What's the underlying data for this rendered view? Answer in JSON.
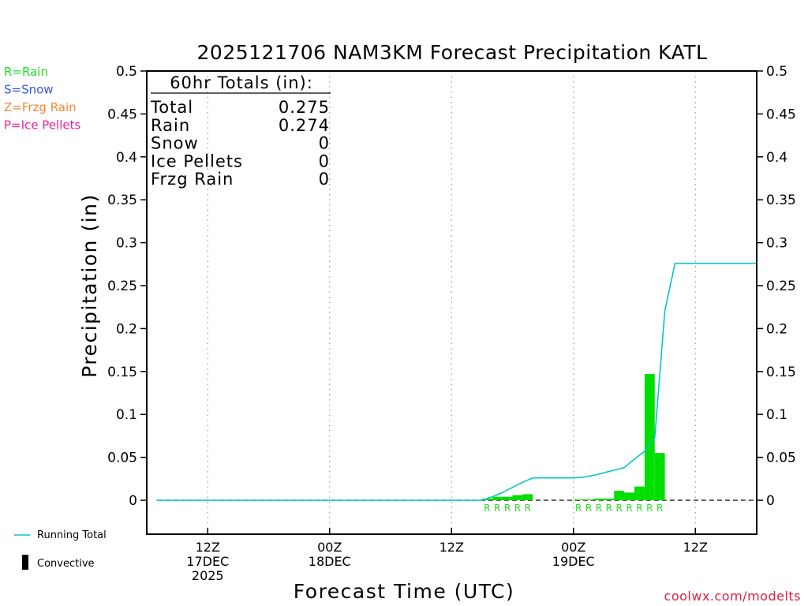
{
  "chart_data": {
    "type": "bar",
    "title": "2025121706 NAM3KM Forecast Precipitation KATL",
    "ylabel": "Precipitation (in)",
    "xlabel": "Forecast Time (UTC)",
    "ylim": [
      -0.04,
      0.5
    ],
    "yticks": [
      0,
      0.05,
      0.1,
      0.15,
      0.2,
      0.25,
      0.3,
      0.35,
      0.4,
      0.45,
      0.5
    ],
    "ytick_labels": [
      "0",
      "0.05",
      "0.1",
      "0.15",
      "0.2",
      "0.25",
      "0.3",
      "0.35",
      "0.4",
      "0.45",
      "0.5"
    ],
    "xlim": [
      0,
      60
    ],
    "xticks": [
      {
        "hour": 6,
        "lines": [
          "12Z",
          "17DEC",
          "2025"
        ]
      },
      {
        "hour": 18,
        "lines": [
          "00Z",
          "18DEC"
        ]
      },
      {
        "hour": 30,
        "lines": [
          "12Z"
        ]
      },
      {
        "hour": 42,
        "lines": [
          "00Z",
          "19DEC"
        ]
      },
      {
        "hour": 54,
        "lines": [
          "12Z"
        ]
      }
    ],
    "grid": "vertical dotted at tick positions",
    "zero_line": "dashed",
    "bar_color": "#00dd00",
    "running_total_color": "#00c8c8",
    "hourly_precip": [
      {
        "hour": 34,
        "value": 0.002
      },
      {
        "hour": 35,
        "value": 0.004
      },
      {
        "hour": 36,
        "value": 0.004
      },
      {
        "hour": 37,
        "value": 0.006
      },
      {
        "hour": 38,
        "value": 0.007
      },
      {
        "hour": 43,
        "value": 0.001
      },
      {
        "hour": 44,
        "value": 0.001
      },
      {
        "hour": 45,
        "value": 0.002
      },
      {
        "hour": 46,
        "value": 0.002
      },
      {
        "hour": 47,
        "value": 0.011
      },
      {
        "hour": 48,
        "value": 0.009
      },
      {
        "hour": 49,
        "value": 0.016
      },
      {
        "hour": 50,
        "value": 0.147
      },
      {
        "hour": 51,
        "value": 0.055
      }
    ],
    "precip_type_markers": [
      {
        "hour": 34,
        "type": "R"
      },
      {
        "hour": 35,
        "type": "R"
      },
      {
        "hour": 36,
        "type": "R"
      },
      {
        "hour": 37,
        "type": "R"
      },
      {
        "hour": 38,
        "type": "R"
      },
      {
        "hour": 43,
        "type": "R"
      },
      {
        "hour": 44,
        "type": "R"
      },
      {
        "hour": 45,
        "type": "R"
      },
      {
        "hour": 46,
        "type": "R"
      },
      {
        "hour": 47,
        "type": "R"
      },
      {
        "hour": 48,
        "type": "R"
      },
      {
        "hour": 49,
        "type": "R"
      },
      {
        "hour": 50,
        "type": "R"
      },
      {
        "hour": 51,
        "type": "R"
      }
    ],
    "running_total": [
      {
        "hour": 1,
        "value": 0
      },
      {
        "hour": 33,
        "value": 0
      },
      {
        "hour": 34,
        "value": 0.004
      },
      {
        "hour": 35,
        "value": 0.009
      },
      {
        "hour": 36,
        "value": 0.015
      },
      {
        "hour": 37,
        "value": 0.021
      },
      {
        "hour": 38,
        "value": 0.026
      },
      {
        "hour": 42,
        "value": 0.026
      },
      {
        "hour": 43,
        "value": 0.027
      },
      {
        "hour": 44,
        "value": 0.029
      },
      {
        "hour": 45,
        "value": 0.032
      },
      {
        "hour": 46,
        "value": 0.035
      },
      {
        "hour": 47,
        "value": 0.038
      },
      {
        "hour": 48,
        "value": 0.048
      },
      {
        "hour": 49,
        "value": 0.057
      },
      {
        "hour": 50,
        "value": 0.073
      },
      {
        "hour": 51,
        "value": 0.221
      },
      {
        "hour": 52,
        "value": 0.276
      },
      {
        "hour": 60,
        "value": 0.276
      }
    ],
    "totals_box": {
      "heading": "60hr Totals (in):",
      "rows": [
        {
          "label": "Total",
          "value": "0.275"
        },
        {
          "label": "Rain",
          "value": "0.274"
        },
        {
          "label": "Snow",
          "value": "0"
        },
        {
          "label": "Ice Pellets",
          "value": "0"
        },
        {
          "label": "Frzg Rain",
          "value": "0"
        }
      ]
    },
    "precip_type_legend": [
      {
        "text": "R=Rain",
        "color": "#22dd22"
      },
      {
        "text": "S=Snow",
        "color": "#3355ee"
      },
      {
        "text": "Z=Frzg Rain",
        "color": "#ee8833"
      },
      {
        "text": "P=Ice Pellets",
        "color": "#ee2299"
      }
    ],
    "line_legend": {
      "running_total": "Running Total",
      "convective": "Convective"
    },
    "credit": {
      "text": "coolwx.com/modelts",
      "color": "#dd2244"
    }
  }
}
